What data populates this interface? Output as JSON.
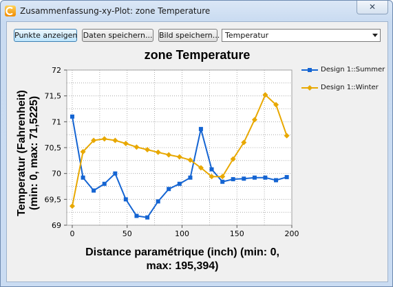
{
  "window": {
    "title": "Zusammenfassung-xy-Plot: zone Temperature",
    "close_label": "✕"
  },
  "toolbar": {
    "show_points_label": "Punkte anzeigen",
    "save_data_label": "Daten speichern...",
    "save_image_label": "Bild speichern...",
    "quantity_selected": "Temperatur"
  },
  "chart_data": {
    "type": "line",
    "title": "zone Temperature",
    "xlabel_line1": "Distance paramétrique (inch) (min: 0,",
    "xlabel_line2": "max: 195,394)",
    "ylabel_line1": "Temperatur (Fahrenheit)",
    "ylabel_line2": "(min: 0, max: 71,5225)",
    "xlim": [
      -5,
      200
    ],
    "ylim": [
      69,
      72
    ],
    "x_ticks": [
      "0",
      "50",
      "100",
      "150",
      "200"
    ],
    "y_ticks": [
      "69",
      "69,5",
      "70",
      "70,5",
      "71",
      "71,5",
      "72"
    ],
    "grid": true,
    "legend_position": "right",
    "series": [
      {
        "name": "Design 1::Summer",
        "color": "#1464d2",
        "marker": "square",
        "x": [
          0,
          9.8,
          19.5,
          29.3,
          39.1,
          48.8,
          58.6,
          68.4,
          78.2,
          87.9,
          97.7,
          107.5,
          117.2,
          127,
          136.8,
          146.5,
          156.3,
          166.1,
          175.8,
          185.6,
          195.4
        ],
        "y": [
          71.1,
          69.92,
          69.67,
          69.8,
          70.0,
          69.5,
          69.18,
          69.15,
          69.46,
          69.7,
          69.8,
          69.92,
          70.86,
          70.08,
          69.84,
          69.89,
          69.9,
          69.92,
          69.92,
          69.87,
          69.93
        ]
      },
      {
        "name": "Design 1::Winter",
        "color": "#e8a800",
        "marker": "diamond",
        "x": [
          0,
          9.8,
          19.5,
          29.3,
          39.1,
          48.8,
          58.6,
          68.4,
          78.2,
          87.9,
          97.7,
          107.5,
          117.2,
          127,
          136.8,
          146.5,
          156.3,
          166.1,
          175.8,
          185.6,
          195.4
        ],
        "y": [
          69.37,
          70.42,
          70.64,
          70.67,
          70.64,
          70.58,
          70.51,
          70.46,
          70.41,
          70.36,
          70.32,
          70.26,
          70.11,
          69.94,
          69.94,
          70.28,
          70.6,
          71.04,
          71.52,
          71.33,
          70.73
        ]
      }
    ]
  }
}
